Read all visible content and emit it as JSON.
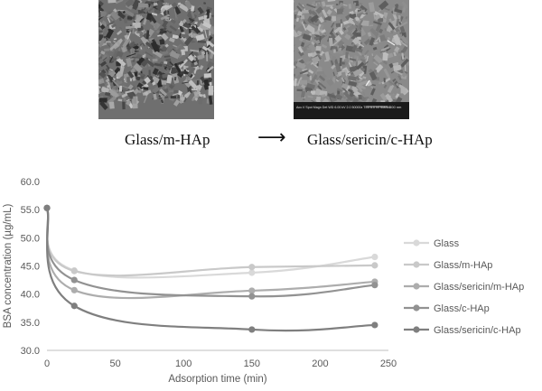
{
  "images": {
    "left_label": "Glass/m-HAp",
    "right_label": "Glass/sericin/c-HAp",
    "arrow": "⟶",
    "right_scale_text": "500 nm",
    "right_info_text": "Acc.V  Spot Magn  Det  WD  6.00 kV 2.0  50000x  TLD 6.0  NTSMAM"
  },
  "chart_data": {
    "type": "line",
    "xlabel": "Adsorption time (min)",
    "ylabel": "BSA concentration (µg/mL)",
    "xlim": [
      0,
      250
    ],
    "ylim": [
      30.0,
      60.0
    ],
    "xticks": [
      0,
      50,
      100,
      150,
      200,
      250
    ],
    "yticks": [
      "30.0",
      "35.0",
      "40.0",
      "45.0",
      "50.0",
      "55.0",
      "60.0"
    ],
    "legend_position": "right",
    "grid": false,
    "series": [
      {
        "name": "Glass",
        "color": "#d9d9d9",
        "x": [
          0,
          20,
          150,
          240
        ],
        "y": [
          55.3,
          44.2,
          43.8,
          46.6
        ]
      },
      {
        "name": "Glass/m-HAp",
        "color": "#c9c9c9",
        "x": [
          0,
          20,
          150,
          240
        ],
        "y": [
          55.3,
          44.1,
          44.8,
          45.1
        ]
      },
      {
        "name": "Glass/sericin/m-HAp",
        "color": "#adadad",
        "x": [
          0,
          20,
          150,
          240
        ],
        "y": [
          55.3,
          40.7,
          40.6,
          42.2
        ]
      },
      {
        "name": "Glass/c-HAp",
        "color": "#929292",
        "x": [
          0,
          20,
          150,
          240
        ],
        "y": [
          55.3,
          42.5,
          39.6,
          41.6
        ]
      },
      {
        "name": "Glass/sericin/c-HAp",
        "color": "#7f7f7f",
        "x": [
          0,
          20,
          150,
          240
        ],
        "y": [
          55.3,
          37.9,
          33.7,
          34.5
        ]
      }
    ]
  }
}
